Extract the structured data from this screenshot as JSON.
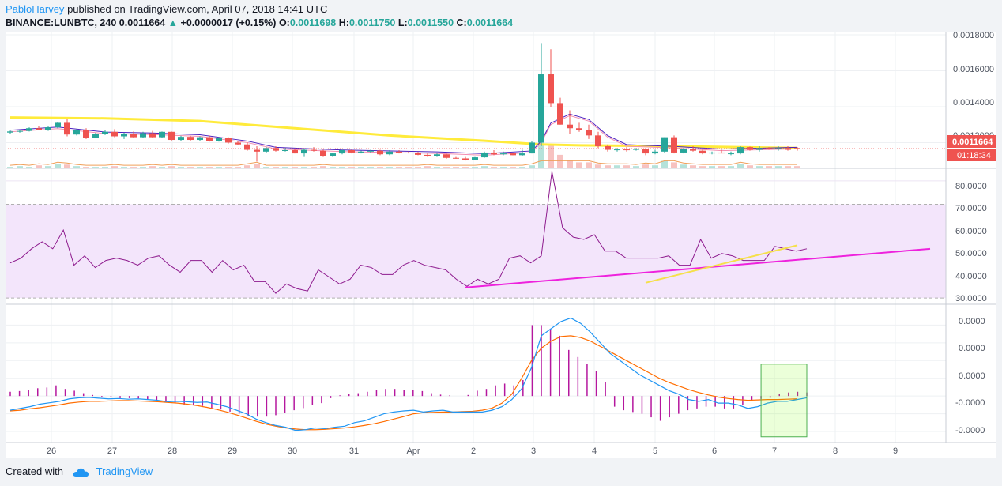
{
  "header": {
    "author": "PabloHarvey",
    "published_text": "published on TradingView.com, April 07, 2018 14:41 UTC",
    "symbol": "BINANCE:LUNBTC, 240",
    "last": "0.0011664",
    "change": "+0.0000017 (+0.15%)",
    "open_label": "O:",
    "open": "0.0011698",
    "high_label": "H:",
    "high": "0.0011750",
    "low_label": "L:",
    "low": "0.0011550",
    "close_label": "C:",
    "close": "0.0011664"
  },
  "price_axis": {
    "ticks": [
      "0.0018000",
      "0.0016000",
      "0.0014000",
      "0.0012000"
    ],
    "last_price_label": "0.0011664",
    "countdown_label": "01:18:34"
  },
  "rsi_axis": {
    "ticks": [
      "80.0000",
      "70.0000",
      "60.0000",
      "50.0000",
      "40.0000",
      "30.0000"
    ]
  },
  "macd_axis": {
    "ticks": [
      "0.0000",
      "0.0000",
      "0.0000",
      "-0.0000",
      "-0.0000"
    ]
  },
  "time_axis": {
    "labels": [
      "26",
      "27",
      "28",
      "29",
      "30",
      "31",
      "Apr",
      "2",
      "3",
      "4",
      "5",
      "6",
      "7",
      "8",
      "9"
    ]
  },
  "footer": {
    "created_with": "Created with",
    "brand": "TradingView"
  },
  "colors": {
    "up": "#26a69a",
    "down": "#ef5350",
    "ma_yellow": "#ffeb3b",
    "ma_purple": "#4a1fbf",
    "rsi_line": "#8e1b8e",
    "rsi_band": "#f3e5fb",
    "trend_magenta": "#ee22dd",
    "trend_yellow": "#f5e04a",
    "macd_line": "#2196f3",
    "signal_line": "#ff6d00",
    "hist": "#b5179e"
  },
  "chart_data": {
    "type": "candlestick",
    "symbol": "BINANCE:LUNBTC",
    "interval": "240",
    "price_ylim": [
      0.00107,
      0.0018
    ],
    "rsi_ylim": [
      28,
      84
    ],
    "rsi_band": [
      30,
      70
    ],
    "x_labels": [
      "26",
      "27",
      "28",
      "29",
      "30",
      "31",
      "Apr",
      "2",
      "3",
      "4",
      "5",
      "6",
      "7",
      "8",
      "9"
    ],
    "candles": [
      [
        0.001256,
        0.001266,
        0.00125,
        0.001262
      ],
      [
        0.001262,
        0.001272,
        0.001255,
        0.001265
      ],
      [
        0.001265,
        0.001285,
        0.001262,
        0.00128
      ],
      [
        0.00128,
        0.001292,
        0.001268,
        0.001272
      ],
      [
        0.001272,
        0.00129,
        0.001265,
        0.001285
      ],
      [
        0.001285,
        0.001315,
        0.00128,
        0.00131
      ],
      [
        0.00131,
        0.00133,
        0.001235,
        0.001245
      ],
      [
        0.001245,
        0.001275,
        0.00124,
        0.00127
      ],
      [
        0.00127,
        0.00128,
        0.00122,
        0.001228
      ],
      [
        0.001228,
        0.001255,
        0.001225,
        0.00125
      ],
      [
        0.00125,
        0.001268,
        0.001242,
        0.00126
      ],
      [
        0.00126,
        0.001275,
        0.00123,
        0.001235
      ],
      [
        0.001235,
        0.001255,
        0.00122,
        0.00125
      ],
      [
        0.00125,
        0.001262,
        0.001225,
        0.00123
      ],
      [
        0.00123,
        0.00126,
        0.001225,
        0.001252
      ],
      [
        0.001252,
        0.001265,
        0.001228,
        0.00123
      ],
      [
        0.00123,
        0.001262,
        0.001225,
        0.00126
      ],
      [
        0.00126,
        0.001262,
        0.00121,
        0.001215
      ],
      [
        0.001215,
        0.001238,
        0.00121,
        0.001232
      ],
      [
        0.001232,
        0.001238,
        0.00121,
        0.001215
      ],
      [
        0.001215,
        0.001235,
        0.00121,
        0.00123
      ],
      [
        0.00123,
        0.00124,
        0.001205,
        0.00121
      ],
      [
        0.00121,
        0.00123,
        0.001205,
        0.001225
      ],
      [
        0.001225,
        0.00123,
        0.001195,
        0.0012
      ],
      [
        0.0012,
        0.00121,
        0.001185,
        0.00119
      ],
      [
        0.00119,
        0.0012,
        0.001155,
        0.00116
      ],
      [
        0.00116,
        0.00118,
        0.001095,
        0.00115
      ],
      [
        0.00115,
        0.001175,
        0.001145,
        0.00117
      ],
      [
        0.00117,
        0.00118,
        0.00115,
        0.001155
      ],
      [
        0.001155,
        0.00117,
        0.00115,
        0.001158
      ],
      [
        0.001158,
        0.001165,
        0.00114,
        0.00114
      ],
      [
        0.00114,
        0.001165,
        0.00112,
        0.00116
      ],
      [
        0.00116,
        0.001175,
        0.00115,
        0.001155
      ],
      [
        0.001155,
        0.00116,
        0.00112,
        0.001125
      ],
      [
        0.001125,
        0.001145,
        0.00112,
        0.00114
      ],
      [
        0.00114,
        0.00116,
        0.001135,
        0.001158
      ],
      [
        0.001158,
        0.001165,
        0.00114,
        0.001145
      ],
      [
        0.001145,
        0.001155,
        0.00114,
        0.00115
      ],
      [
        0.00115,
        0.00116,
        0.001145,
        0.001155
      ],
      [
        0.001155,
        0.00116,
        0.00113,
        0.001135
      ],
      [
        0.001135,
        0.001158,
        0.00113,
        0.00115
      ],
      [
        0.00115,
        0.001158,
        0.00114,
        0.001145
      ],
      [
        0.001145,
        0.00115,
        0.00114,
        0.001142
      ],
      [
        0.001142,
        0.001148,
        0.00113,
        0.001132
      ],
      [
        0.001132,
        0.00114,
        0.00112,
        0.001125
      ],
      [
        0.001125,
        0.00114,
        0.00112,
        0.001135
      ],
      [
        0.001135,
        0.001138,
        0.00111,
        0.001115
      ],
      [
        0.001115,
        0.00112,
        0.00111,
        0.001112
      ],
      [
        0.001112,
        0.00112,
        0.0011,
        0.001105
      ],
      [
        0.001105,
        0.00112,
        0.001102,
        0.001118
      ],
      [
        0.001118,
        0.00115,
        0.001115,
        0.001145
      ],
      [
        0.001145,
        0.001158,
        0.00113,
        0.001135
      ],
      [
        0.001135,
        0.00115,
        0.00113,
        0.00114
      ],
      [
        0.00114,
        0.001145,
        0.00113,
        0.00113
      ],
      [
        0.00113,
        0.00116,
        0.001125,
        0.00114
      ],
      [
        0.00114,
        0.00121,
        0.00114,
        0.0012
      ],
      [
        0.0012,
        0.00175,
        0.00118,
        0.00158
      ],
      [
        0.00158,
        0.00172,
        0.0014,
        0.00142
      ],
      [
        0.00142,
        0.00145,
        0.0013,
        0.0013
      ],
      [
        0.0013,
        0.00138,
        0.00125,
        0.00128
      ],
      [
        0.00128,
        0.00131,
        0.00126,
        0.00127
      ],
      [
        0.00127,
        0.0013,
        0.00122,
        0.00124
      ],
      [
        0.00124,
        0.00126,
        0.00117,
        0.00118
      ],
      [
        0.00118,
        0.00119,
        0.00115,
        0.00116
      ],
      [
        0.00116,
        0.00117,
        0.00115,
        0.001162
      ],
      [
        0.001162,
        0.001175,
        0.00115,
        0.00116
      ],
      [
        0.00116,
        0.00117,
        0.001155,
        0.001165
      ],
      [
        0.001165,
        0.00117,
        0.00113,
        0.00114
      ],
      [
        0.00114,
        0.00116,
        0.001135,
        0.00115
      ],
      [
        0.00115,
        0.00123,
        0.001145,
        0.00123
      ],
      [
        0.00123,
        0.00124,
        0.00114,
        0.001145
      ],
      [
        0.001145,
        0.00117,
        0.00114,
        0.001165
      ],
      [
        0.001165,
        0.00118,
        0.00115,
        0.001155
      ],
      [
        0.001155,
        0.00116,
        0.001135,
        0.00114
      ],
      [
        0.00114,
        0.00115,
        0.001135,
        0.001145
      ],
      [
        0.001145,
        0.00116,
        0.00114,
        0.00114
      ],
      [
        0.00114,
        0.00115,
        0.00113,
        0.00114
      ],
      [
        0.00114,
        0.00118,
        0.001135,
        0.001175
      ],
      [
        0.001175,
        0.001178,
        0.001155,
        0.00116
      ],
      [
        0.00116,
        0.00118,
        0.00115,
        0.00117
      ],
      [
        0.00117,
        0.001175,
        0.00116,
        0.001165
      ],
      [
        0.001165,
        0.00118,
        0.001155,
        0.00117
      ],
      [
        0.00117,
        0.00118,
        0.001155,
        0.00116
      ],
      [
        0.0011698,
        0.001175,
        0.001155,
        0.0011664
      ]
    ],
    "ma_slow": [
      [
        0,
        0.00134
      ],
      [
        10,
        0.001335
      ],
      [
        20,
        0.00132
      ],
      [
        30,
        0.00128
      ],
      [
        40,
        0.00124
      ],
      [
        50,
        0.00121
      ],
      [
        56,
        0.00119
      ],
      [
        60,
        0.001185
      ],
      [
        70,
        0.00118
      ],
      [
        83,
        0.00117
      ]
    ],
    "ma_fast": [
      [
        0,
        0.00126
      ],
      [
        5,
        0.001278
      ],
      [
        10,
        0.00125
      ],
      [
        15,
        0.001245
      ],
      [
        20,
        0.001235
      ],
      [
        25,
        0.0012
      ],
      [
        28,
        0.001165
      ],
      [
        35,
        0.00115
      ],
      [
        45,
        0.00114
      ],
      [
        50,
        0.00113
      ],
      [
        55,
        0.001145
      ],
      [
        56,
        0.0012
      ],
      [
        57,
        0.0013
      ],
      [
        59,
        0.00135
      ],
      [
        61,
        0.00132
      ],
      [
        63,
        0.00123
      ],
      [
        65,
        0.00118
      ],
      [
        70,
        0.00117
      ],
      [
        75,
        0.001155
      ],
      [
        83,
        0.001165
      ]
    ],
    "volume": [
      2,
      3,
      2,
      4,
      3,
      6,
      5,
      3,
      2,
      2,
      2,
      3,
      2,
      2,
      2,
      3,
      2,
      3,
      2,
      2,
      2,
      2,
      2,
      2,
      2,
      4,
      6,
      2,
      2,
      2,
      2,
      2,
      2,
      3,
      2,
      2,
      2,
      2,
      2,
      2,
      2,
      2,
      2,
      2,
      3,
      2,
      2,
      2,
      2,
      2,
      3,
      2,
      2,
      2,
      2,
      4,
      40,
      30,
      18,
      10,
      8,
      8,
      5,
      4,
      4,
      4,
      3,
      5,
      4,
      10,
      8,
      5,
      4,
      3,
      3,
      3,
      3,
      6,
      4,
      3,
      3,
      3,
      3,
      3
    ],
    "rsi": [
      45,
      47,
      51,
      54,
      51,
      59,
      44,
      48,
      43,
      46,
      47,
      46,
      44,
      47,
      48,
      44,
      41,
      46,
      46,
      41,
      46,
      42,
      44,
      37,
      37,
      32,
      36,
      34,
      33,
      42,
      39,
      36,
      38,
      44,
      43,
      40,
      40,
      44,
      46,
      44,
      43,
      42,
      38,
      35,
      38,
      36,
      38,
      47,
      48,
      45,
      48,
      84,
      60,
      56,
      55,
      57,
      50,
      50,
      47,
      47,
      47,
      47,
      48,
      44,
      44,
      55,
      47,
      49,
      48,
      46,
      46,
      46,
      52,
      51,
      50,
      51
    ],
    "rsi_trendlines": [
      {
        "from": [
          48,
          34.5
        ],
        "to": [
          97,
          51
        ]
      },
      {
        "from": [
          67,
          36.5
        ],
        "to": [
          83,
          52.5
        ]
      }
    ],
    "macd": [
      -4.0,
      -3.5,
      -3.0,
      -2.3,
      -1.9,
      -1.5,
      -0.8,
      -0.5,
      -0.4,
      -0.6,
      -0.8,
      -0.7,
      -0.9,
      -0.8,
      -1.0,
      -1.2,
      -1.6,
      -1.5,
      -1.6,
      -1.8,
      -1.7,
      -2.3,
      -3.0,
      -4.0,
      -5.0,
      -6.5,
      -7.5,
      -8.3,
      -8.8,
      -9.7,
      -9.5,
      -9.0,
      -9.2,
      -8.8,
      -8.5,
      -7.5,
      -7.0,
      -6.0,
      -5.0,
      -4.5,
      -4.2,
      -4.0,
      -4.5,
      -4.2,
      -4.0,
      -4.5,
      -4.5,
      -4.5,
      -4.5,
      -4.0,
      -3.0,
      -1.0,
      2.0,
      8.0,
      17.0,
      19.0,
      21.0,
      22.0,
      20.5,
      18.0,
      15.0,
      12.0,
      10.0,
      8.0,
      6.0,
      4.5,
      3.0,
      1.5,
      0.5,
      -1.0,
      -1.5,
      -1.0,
      -2.0,
      -2.0,
      -2.5,
      -3.5,
      -3.0,
      -2.0,
      -1.5,
      -1.5,
      -1.0,
      -0.5
    ],
    "signal": [
      -4.2,
      -4.0,
      -3.6,
      -3.3,
      -2.9,
      -2.5,
      -2.0,
      -1.7,
      -1.5,
      -1.5,
      -1.4,
      -1.3,
      -1.3,
      -1.4,
      -1.5,
      -1.6,
      -1.8,
      -2.0,
      -2.3,
      -2.7,
      -3.2,
      -3.8,
      -4.5,
      -5.3,
      -6.2,
      -7.1,
      -7.9,
      -8.5,
      -9.0,
      -9.3,
      -9.5,
      -9.5,
      -9.4,
      -9.2,
      -9.0,
      -8.7,
      -8.3,
      -7.8,
      -7.2,
      -6.5,
      -5.8,
      -5.0,
      -4.7,
      -4.6,
      -4.5,
      -4.5,
      -4.4,
      -4.3,
      -4.0,
      -3.4,
      -2.0,
      0.5,
      5.0,
      10.0,
      13.5,
      15.5,
      16.8,
      17.0,
      16.5,
      15.5,
      14.0,
      12.5,
      11.0,
      9.5,
      8.0,
      6.5,
      5.0,
      3.8,
      2.8,
      1.8,
      1.0,
      0.3,
      -0.3,
      -0.7,
      -1.0,
      -1.2,
      -1.1,
      -1.0,
      -1.0,
      -0.9,
      -0.8
    ],
    "macd_hist": [
      1.2,
      1.4,
      1.6,
      2.2,
      2.4,
      3.0,
      2.0,
      1.5,
      0.8,
      0.3,
      -0.2,
      -0.4,
      -0.6,
      -0.6,
      -0.7,
      -1.0,
      -1.4,
      -1.6,
      -2.0,
      -2.4,
      -2.6,
      -2.8,
      -3.4,
      -3.8,
      -4.4,
      -5.0,
      -5.6,
      -5.8,
      -5.8,
      -5.4,
      -4.8,
      -4.0,
      -3.4,
      -2.6,
      -2.0,
      -0.6,
      0.2,
      0.6,
      0.8,
      1.2,
      1.6,
      2.0,
      2.0,
      1.8,
      1.6,
      1.4,
      0.8,
      0.4,
      0.2,
      0,
      0.3,
      1.5,
      2.0,
      3.0,
      3.5,
      3.0,
      4.5,
      20.0,
      20.0,
      19.0,
      17.0,
      13.0,
      11.0,
      9.0,
      7.0,
      4.0,
      -3.0,
      -4.0,
      -4.5,
      -5.0,
      -6.0,
      -7.0,
      -6.0,
      -5.0,
      -4.0,
      -3.5,
      -3.0,
      -3.0,
      -3.5,
      -3.5,
      -2.5,
      -1.5,
      -0.8,
      -0.5,
      0.5,
      1.0,
      1.2,
      1.0
    ],
    "macd_ylim": [
      -12,
      25
    ],
    "macd_highlight": {
      "from": [
        82,
        9.0
      ],
      "to": [
        87,
        -11.5
      ]
    }
  }
}
